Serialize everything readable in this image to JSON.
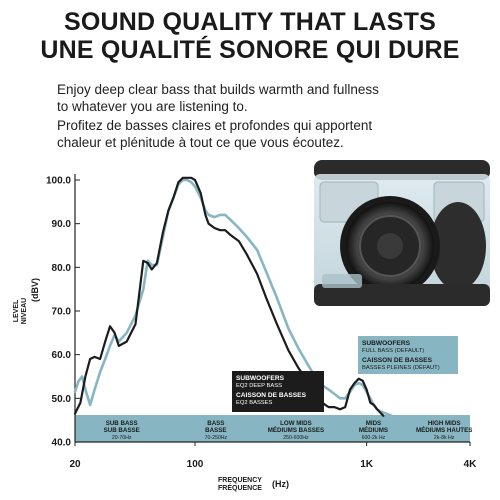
{
  "header": {
    "title_en": "SOUND QUALITY THAT LASTS",
    "title_fr": "UNE QUALITÉ SONORE QUI DURE",
    "desc_en_1": "Enjoy deep clear bass that builds warmth and fullness",
    "desc_en_2": "to whatever you are listening to.",
    "desc_fr_1": "Profitez de basses claires et profondes qui apportent",
    "desc_fr_2": "chaleur et plénitude à tout ce que vous écoutez."
  },
  "colors": {
    "deep_bass": "#1c1c1c",
    "full_bass": "#87b6c2",
    "band": "#87b6c2",
    "ink": "#1a1a1a"
  },
  "chart_data": {
    "type": "line",
    "y_axis_label": [
      "LEVEL",
      "NIVEAU"
    ],
    "y_axis_unit": "(dBV)",
    "x_axis_label": [
      "FREQUENCY",
      "FRÉQUENCE"
    ],
    "x_axis_unit": "(Hz)",
    "x_scale": "log",
    "xlim": [
      20,
      4000
    ],
    "ylim": [
      40,
      100
    ],
    "y_ticks": [
      40,
      50,
      60,
      70,
      80,
      90,
      100
    ],
    "y_tick_labels": [
      "40.0",
      "50.0",
      "60.0",
      "70.0",
      "80.0",
      "90.0",
      "100.0"
    ],
    "x_ticks": [
      20,
      100,
      1000,
      4000
    ],
    "x_tick_labels": [
      "20",
      "100",
      "1K",
      "4K"
    ],
    "grid": false,
    "series": [
      {
        "name_1": "SUBWOOFERS",
        "name_2": "EQ2 DEEP BASS",
        "name_3": "CAISSON DE BASSES",
        "name_4": "EQ2 BASSES",
        "color": "#1c1c1c",
        "x": [
          20,
          21.5,
          23,
          24.5,
          26,
          28,
          30,
          32,
          34,
          36,
          40,
          45,
          50,
          53,
          56,
          60,
          65,
          70,
          75,
          80,
          85,
          90,
          95,
          100,
          108,
          115,
          120,
          130,
          140,
          150,
          160,
          180,
          200,
          230,
          260,
          300,
          350,
          400,
          450,
          500,
          550,
          600,
          650,
          700,
          750,
          800,
          850,
          900,
          950,
          1000,
          1050,
          1100,
          1150,
          1250
        ],
        "y": [
          46.5,
          49,
          55,
          59,
          59.5,
          59,
          63,
          66.5,
          65,
          62,
          63,
          67,
          81.5,
          81,
          79.5,
          81,
          88,
          93,
          96,
          99.5,
          100.5,
          100.5,
          100.5,
          100,
          97,
          92,
          90,
          89,
          88.5,
          88.5,
          87.5,
          86,
          83,
          78.5,
          73,
          67,
          61,
          57,
          54,
          51,
          49,
          48,
          48,
          47.5,
          48,
          52,
          53.5,
          54.5,
          54,
          52,
          49,
          48.5,
          47.5,
          46
        ]
      },
      {
        "name_1": "SUBWOOFERS",
        "name_2": "FULL BASS (DEFAULT)",
        "name_3": "CAISSON DE BASSES",
        "name_4": "BASSES PLEINES (DÉFAUT)",
        "color": "#87b6c2",
        "x": [
          20,
          21,
          22,
          23,
          24.5,
          26,
          28,
          30,
          32,
          34,
          36,
          40,
          45,
          50,
          53,
          56,
          60,
          65,
          70,
          75,
          80,
          85,
          90,
          95,
          100,
          108,
          115,
          120,
          130,
          140,
          150,
          160,
          180,
          200,
          230,
          260,
          300,
          350,
          400,
          450,
          500,
          550,
          600,
          650,
          700,
          750,
          800,
          850,
          900,
          950,
          1000,
          1050,
          1100,
          1150,
          1200,
          1300,
          1400,
          1500
        ],
        "y": [
          51.5,
          54,
          55,
          52,
          48.5,
          52,
          56,
          59,
          62,
          64.5,
          63,
          65,
          69,
          75,
          81.5,
          80.5,
          80.5,
          87,
          93,
          96,
          99,
          100,
          100,
          99.5,
          98.5,
          96,
          93,
          92,
          91.5,
          92,
          92,
          91,
          89,
          87,
          84,
          79,
          73,
          66,
          61.5,
          58,
          55,
          53,
          52,
          51,
          50,
          50,
          51.5,
          53,
          53.5,
          53,
          51.5,
          50,
          48.5,
          47.5,
          47,
          46.5,
          46,
          45.5
        ]
      }
    ],
    "bands": [
      {
        "title_1": "SUB BASS",
        "title_2": "SUB BASSE",
        "range": "20-70Hz",
        "from": 20,
        "to": 70
      },
      {
        "title_1": "BASS",
        "title_2": "BASSE",
        "range": "70-250Hz",
        "from": 70,
        "to": 250
      },
      {
        "title_1": "LOW MIDS",
        "title_2": "MÉDIUMS BASSES",
        "range": "250-600Hz",
        "from": 250,
        "to": 600
      },
      {
        "title_1": "MIDS",
        "title_2": "MÉDIUMS",
        "range": "600-2k Hz",
        "from": 600,
        "to": 2000
      },
      {
        "title_1": "HIGH MIDS",
        "title_2": "MÉDIUMS HAUTES",
        "range": "2k-8k Hz",
        "from": 2000,
        "to": 4000
      }
    ]
  }
}
